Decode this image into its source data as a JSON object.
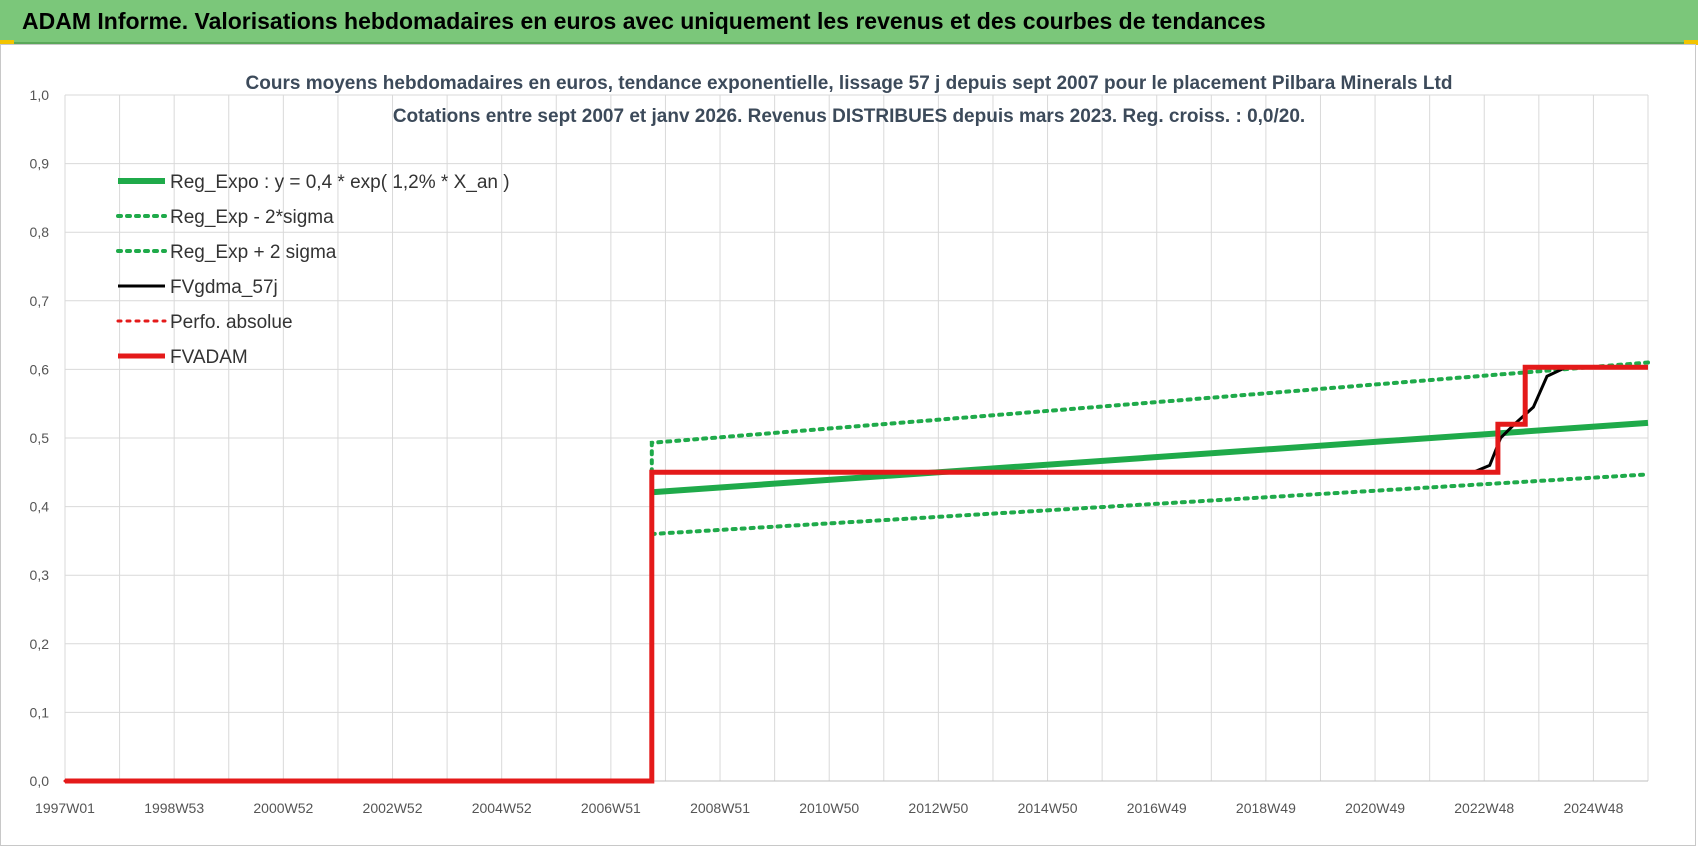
{
  "header": {
    "title": "ADAM Informe. Valorisations hebdomadaires en euros avec uniquement les revenus et des courbes de tendances"
  },
  "colors": {
    "header_bg": "#7bc77a",
    "green": "#1faa4a",
    "black": "#000000",
    "red": "#e41a1a",
    "grid": "#d9d9d9"
  },
  "chart_data": {
    "type": "line",
    "title": "Cours moyens hebdomadaires en euros, tendance exponentielle, lissage 57 j depuis sept 2007 pour le placement Pilbara Minerals Ltd",
    "subtitle": "Cotations entre sept 2007 et janv 2026. Revenus DISTRIBUES depuis mars 2023. Reg. croiss. : 0,0/20.",
    "xlabel": "",
    "ylabel": "",
    "ylim": [
      0,
      1
    ],
    "xlim": [
      1997.0,
      2026.0
    ],
    "y_ticks": [
      "0,0",
      "0,1",
      "0,2",
      "0,3",
      "0,4",
      "0,5",
      "0,6",
      "0,7",
      "0,8",
      "0,9",
      "1,0"
    ],
    "x_ticks": [
      {
        "label": "1997W01",
        "x": 1997.0
      },
      {
        "label": "1998W53",
        "x": 1999.0
      },
      {
        "label": "2000W52",
        "x": 2001.0
      },
      {
        "label": "2002W52",
        "x": 2003.0
      },
      {
        "label": "2004W52",
        "x": 2005.0
      },
      {
        "label": "2006W51",
        "x": 2007.0
      },
      {
        "label": "2008W51",
        "x": 2009.0
      },
      {
        "label": "2010W50",
        "x": 2011.0
      },
      {
        "label": "2012W50",
        "x": 2013.0
      },
      {
        "label": "2014W50",
        "x": 2015.0
      },
      {
        "label": "2016W49",
        "x": 2017.0
      },
      {
        "label": "2018W49",
        "x": 2019.0
      },
      {
        "label": "2020W49",
        "x": 2021.0
      },
      {
        "label": "2022W48",
        "x": 2023.0
      },
      {
        "label": "2024W48",
        "x": 2025.0
      }
    ],
    "grid": true,
    "legend_position": "top-left",
    "series": [
      {
        "name": "Reg_Expo : y = 0,4 * exp( 1,2% *  X_an )",
        "color": "#1faa4a",
        "style": "solid",
        "width": 6,
        "points": [
          [
            2007.75,
            0.421
          ],
          [
            2026.0,
            0.522
          ]
        ]
      },
      {
        "name": "Reg_Exp - 2*sigma",
        "color": "#1faa4a",
        "style": "dotted",
        "width": 4,
        "points": [
          [
            2007.75,
            0.36
          ],
          [
            2026.0,
            0.447
          ]
        ]
      },
      {
        "name": "Reg_Exp + 2 sigma",
        "color": "#1faa4a",
        "style": "dotted",
        "width": 4,
        "points": [
          [
            2007.75,
            0.45
          ],
          [
            2007.75,
            0.493
          ],
          [
            2026.0,
            0.61
          ]
        ]
      },
      {
        "name": "FVgdma_57j",
        "color": "#000000",
        "style": "solid",
        "width": 3,
        "points": [
          [
            1997.0,
            0.0
          ],
          [
            2007.75,
            0.0
          ],
          [
            2007.75,
            0.45
          ],
          [
            2022.8,
            0.45
          ],
          [
            2023.1,
            0.46
          ],
          [
            2023.3,
            0.5
          ],
          [
            2023.55,
            0.52
          ],
          [
            2023.9,
            0.545
          ],
          [
            2024.15,
            0.59
          ],
          [
            2024.5,
            0.603
          ],
          [
            2026.0,
            0.603
          ]
        ]
      },
      {
        "name": "Perfo. absolue",
        "color": "#e41a1a",
        "style": "dotted",
        "width": 3,
        "points": [
          [
            1997.0,
            0.0
          ],
          [
            2007.75,
            0.0
          ],
          [
            2007.75,
            0.45
          ],
          [
            2023.25,
            0.45
          ],
          [
            2023.25,
            0.52
          ],
          [
            2023.75,
            0.52
          ],
          [
            2023.75,
            0.603
          ],
          [
            2026.0,
            0.603
          ]
        ]
      },
      {
        "name": "FVADAM",
        "color": "#e41a1a",
        "style": "solid",
        "width": 5,
        "points": [
          [
            1997.0,
            0.0
          ],
          [
            2007.75,
            0.0
          ],
          [
            2007.75,
            0.45
          ],
          [
            2023.25,
            0.45
          ],
          [
            2023.25,
            0.52
          ],
          [
            2023.75,
            0.52
          ],
          [
            2023.75,
            0.603
          ],
          [
            2026.0,
            0.603
          ]
        ]
      }
    ]
  }
}
